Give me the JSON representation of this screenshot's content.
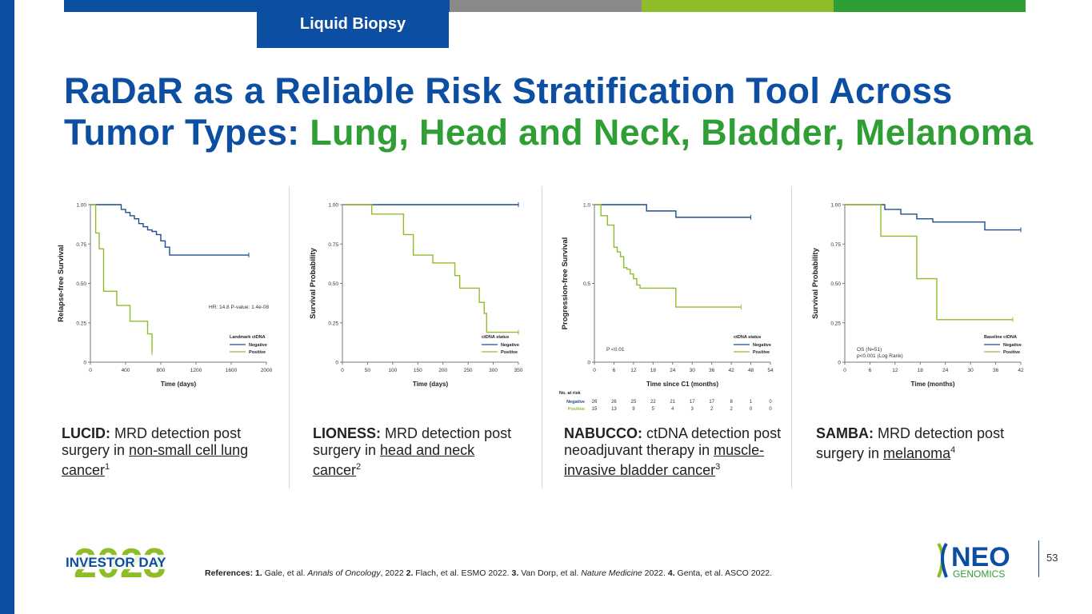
{
  "header": {
    "tab_label": "Liquid Biopsy",
    "colors": {
      "blue": "#0b4ea2",
      "gray": "#888888",
      "lime": "#8fbd2a",
      "green": "#2e9e35"
    }
  },
  "title": {
    "line1": "RaDaR as a Reliable Risk Stratification Tool Across",
    "line2_blue": "Tumor Types: ",
    "line2_green": "Lung, Head and Neck, Bladder, Melanoma"
  },
  "charts": [
    {
      "ylabel": "Relapse-free Survival",
      "xlabel": "Time (days)",
      "yticks": [
        "0",
        "0.25",
        "0.50",
        "0.75",
        "1.00"
      ],
      "xticks": [
        "0",
        "400",
        "800",
        "1200",
        "1600",
        "2000"
      ],
      "annotation": "HR: 14.8 P-value: 1.4e-08",
      "legend_title": "Landmark ctDNA",
      "legend_neg": "Negative",
      "legend_pos": "Positive"
    },
    {
      "ylabel": "Survival Probability",
      "xlabel": "Time (days)",
      "yticks": [
        "0",
        "0.25",
        "0.50",
        "0.75",
        "1.00"
      ],
      "xticks": [
        "0",
        "50",
        "100",
        "150",
        "200",
        "250",
        "300",
        "350"
      ],
      "legend_title": "ctDNA status",
      "legend_neg": "Negative",
      "legend_pos": "Positive"
    },
    {
      "ylabel": "Progression-free Survival",
      "xlabel": "Time since C1 (months)",
      "yticks": [
        "0",
        "0.5",
        "1.0"
      ],
      "xticks": [
        "0",
        "6",
        "12",
        "18",
        "24",
        "30",
        "36",
        "42",
        "48",
        "54"
      ],
      "annotation": "P <0.01",
      "legend_title": "ctDNA status",
      "legend_neg": "Negative",
      "legend_pos": "Positive",
      "risk_title": "No. at risk",
      "risk_neg_label": "Negative",
      "risk_pos_label": "Positive",
      "risk_neg": [
        "26",
        "26",
        "25",
        "22",
        "21",
        "17",
        "17",
        "8",
        "1",
        "0"
      ],
      "risk_pos": [
        "15",
        "13",
        "9",
        "5",
        "4",
        "3",
        "2",
        "2",
        "0",
        "0"
      ]
    },
    {
      "ylabel": "Survival Probability",
      "xlabel": "Time (months)",
      "yticks": [
        "0",
        "0.25",
        "0.50",
        "0.75",
        "1.00"
      ],
      "xticks": [
        "0",
        "6",
        "12",
        "18",
        "24",
        "30",
        "36",
        "42"
      ],
      "annotation": "OS (N=51)",
      "annotation2": "p<0.001 (Log Rank)",
      "legend_title": "Baseline ctDNA",
      "legend_neg": "Negative",
      "legend_pos": "Positive"
    }
  ],
  "chart_data": [
    {
      "type": "line",
      "xlim": [
        0,
        2000
      ],
      "ylim": [
        0,
        1
      ],
      "series": [
        {
          "name": "Negative",
          "color": "#1f4e8c",
          "x": [
            0,
            300,
            350,
            400,
            450,
            500,
            550,
            600,
            650,
            700,
            750,
            800,
            850,
            900,
            1800
          ],
          "y": [
            1.0,
            1.0,
            0.97,
            0.95,
            0.93,
            0.91,
            0.88,
            0.86,
            0.84,
            0.83,
            0.81,
            0.77,
            0.73,
            0.68,
            0.68
          ]
        },
        {
          "name": "Positive",
          "color": "#8fbd2a",
          "x": [
            0,
            60,
            100,
            150,
            200,
            300,
            450,
            650,
            700
          ],
          "y": [
            1.0,
            0.82,
            0.72,
            0.45,
            0.45,
            0.36,
            0.26,
            0.18,
            0.06
          ]
        }
      ]
    },
    {
      "type": "line",
      "xlim": [
        0,
        360
      ],
      "ylim": [
        0,
        1
      ],
      "series": [
        {
          "name": "Negative",
          "color": "#1f4e8c",
          "x": [
            0,
            360
          ],
          "y": [
            1.0,
            1.0
          ]
        },
        {
          "name": "Positive",
          "color": "#8fbd2a",
          "x": [
            0,
            60,
            115,
            125,
            145,
            185,
            230,
            240,
            280,
            290,
            295,
            360
          ],
          "y": [
            1.0,
            0.94,
            0.94,
            0.81,
            0.68,
            0.63,
            0.55,
            0.47,
            0.38,
            0.31,
            0.19,
            0.19
          ]
        }
      ]
    },
    {
      "type": "line",
      "xlim": [
        0,
        54
      ],
      "ylim": [
        0,
        1
      ],
      "series": [
        {
          "name": "Negative",
          "color": "#1f4e8c",
          "x": [
            0,
            14,
            16,
            24,
            25,
            48
          ],
          "y": [
            1.0,
            1.0,
            0.96,
            0.96,
            0.92,
            0.92
          ]
        },
        {
          "name": "Positive",
          "color": "#8fbd2a",
          "x": [
            0,
            2,
            4,
            6,
            7,
            8,
            9,
            10,
            11,
            12,
            13,
            14,
            15,
            24,
            25,
            45
          ],
          "y": [
            1.0,
            0.93,
            0.87,
            0.73,
            0.7,
            0.67,
            0.6,
            0.59,
            0.56,
            0.53,
            0.49,
            0.47,
            0.47,
            0.47,
            0.35,
            0.35
          ]
        }
      ]
    },
    {
      "type": "line",
      "xlim": [
        0,
        44
      ],
      "ylim": [
        0,
        1
      ],
      "series": [
        {
          "name": "Negative",
          "color": "#1f4e8c",
          "x": [
            0,
            10,
            14,
            18,
            22,
            35,
            44
          ],
          "y": [
            1.0,
            0.97,
            0.94,
            0.91,
            0.89,
            0.84,
            0.84
          ]
        },
        {
          "name": "Positive",
          "color": "#8fbd2a",
          "x": [
            0,
            9,
            18,
            23,
            42
          ],
          "y": [
            1.0,
            0.8,
            0.53,
            0.27,
            0.27
          ]
        }
      ]
    }
  ],
  "captions": [
    {
      "bold": "LUCID:",
      "pre": " MRD detection post surgery in ",
      "link": "non-small cell lung cancer",
      "sup": "1"
    },
    {
      "bold": "LIONESS:",
      "pre": " MRD detection post surgery in ",
      "link": "head and neck cancer",
      "sup": "2"
    },
    {
      "bold": "NABUCCO:",
      "pre": " ctDNA detection post neoadjuvant therapy in ",
      "link": "muscle-invasive bladder cancer",
      "sup": "3"
    },
    {
      "bold": "SAMBA:",
      "pre": " MRD detection post surgery in ",
      "link": "melanoma",
      "sup": "4"
    }
  ],
  "footer": {
    "references_label": "References: ",
    "ref1_num": "1.",
    "ref1_text": " Gale, et al. ",
    "ref1_journal": "Annals of Oncology",
    "ref1_year": ", 2022 ",
    "ref2_num": "2.",
    "ref2_text": " Flach, et al. ESMO 2022. ",
    "ref3_num": "3.",
    "ref3_text": " Van Dorp, et al. ",
    "ref3_journal": "Nature Medicine",
    "ref3_year": " 2022. ",
    "ref4_num": "4.",
    "ref4_text": " Genta, et al. ASCO 2022.",
    "investor_year": "2023",
    "investor_label": "INVESTOR DAY",
    "neo_label": "NEO",
    "genomics_label": "GENOMICS",
    "page_number": "53"
  }
}
